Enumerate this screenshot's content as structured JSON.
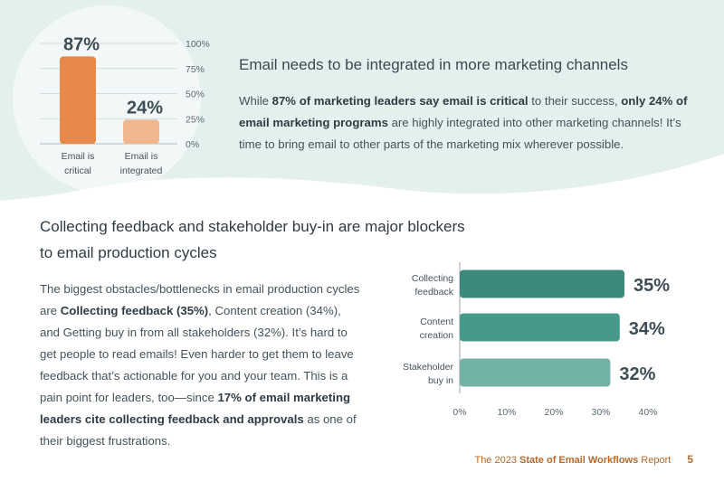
{
  "section1": {
    "title": "Email needs to be integrated in more marketing channels",
    "body": [
      {
        "t": "While ",
        "b": false
      },
      {
        "t": "87% of marketing leaders say email is critical",
        "b": true
      },
      {
        "t": " to their success, ",
        "b": false
      },
      {
        "t": "only 24% of email marketing programs",
        "b": true
      },
      {
        "t": " are highly integrated into other marketing channels! It’s time to bring email to other parts of the marketing mix wherever possible.",
        "b": false
      }
    ]
  },
  "section2": {
    "title": "Collecting feedback and stakeholder buy-in are major blockers to email production cycles",
    "body": [
      {
        "t": "The biggest obstacles/bottlenecks in email production cycles are ",
        "b": false
      },
      {
        "t": "Collecting feedback (35%)",
        "b": true
      },
      {
        "t": ", Content creation (34%), and Getting buy in from all stakeholders (32%). It’s hard to get people to read emails! Even harder to get them to leave feedback that’s actionable for you and your team. This is a pain point for leaders, too—since ",
        "b": false
      },
      {
        "t": "17% of email marketing leaders cite collecting feedback and approvals",
        "b": true
      },
      {
        "t": " as one of their biggest frustrations.",
        "b": false
      }
    ]
  },
  "footer": {
    "prefix": "The 2023 ",
    "bold": "State of Email Workflows",
    "suffix": " Report",
    "page": "5"
  },
  "colors": {
    "top_background": "#e3f0ed",
    "bar_critical": "#e8884a",
    "bar_integrated": "#efb78d",
    "bar_feedback": "#3c8a7c",
    "bar_content": "#469a8a",
    "bar_stakeholder": "#72b3a6",
    "footer_text": "#b5692c"
  },
  "chart_data": [
    {
      "type": "bar",
      "orientation": "vertical",
      "categories": [
        [
          "Email is",
          "critical"
        ],
        [
          "Email is",
          "integrated"
        ]
      ],
      "values": [
        87,
        24
      ],
      "data_labels": [
        "87%",
        "24%"
      ],
      "ylim": [
        0,
        100
      ],
      "yticks": [
        "0%",
        "25%",
        "50%",
        "75%",
        "100%"
      ],
      "ytick_values": [
        0,
        25,
        50,
        75,
        100
      ],
      "grid": true,
      "title": "",
      "xlabel": "",
      "ylabel": ""
    },
    {
      "type": "bar",
      "orientation": "horizontal",
      "categories": [
        [
          "Collecting",
          "feedback"
        ],
        [
          "Content",
          "creation"
        ],
        [
          "Stakeholder",
          "buy in"
        ]
      ],
      "values": [
        35,
        34,
        32
      ],
      "data_labels": [
        "35%",
        "34%",
        "32%"
      ],
      "xlim": [
        0,
        40
      ],
      "xticks": [
        "0%",
        "10%",
        "20%",
        "30%",
        "40%"
      ],
      "xtick_values": [
        0,
        10,
        20,
        30,
        40
      ],
      "grid": false,
      "title": "",
      "xlabel": "",
      "ylabel": ""
    }
  ]
}
